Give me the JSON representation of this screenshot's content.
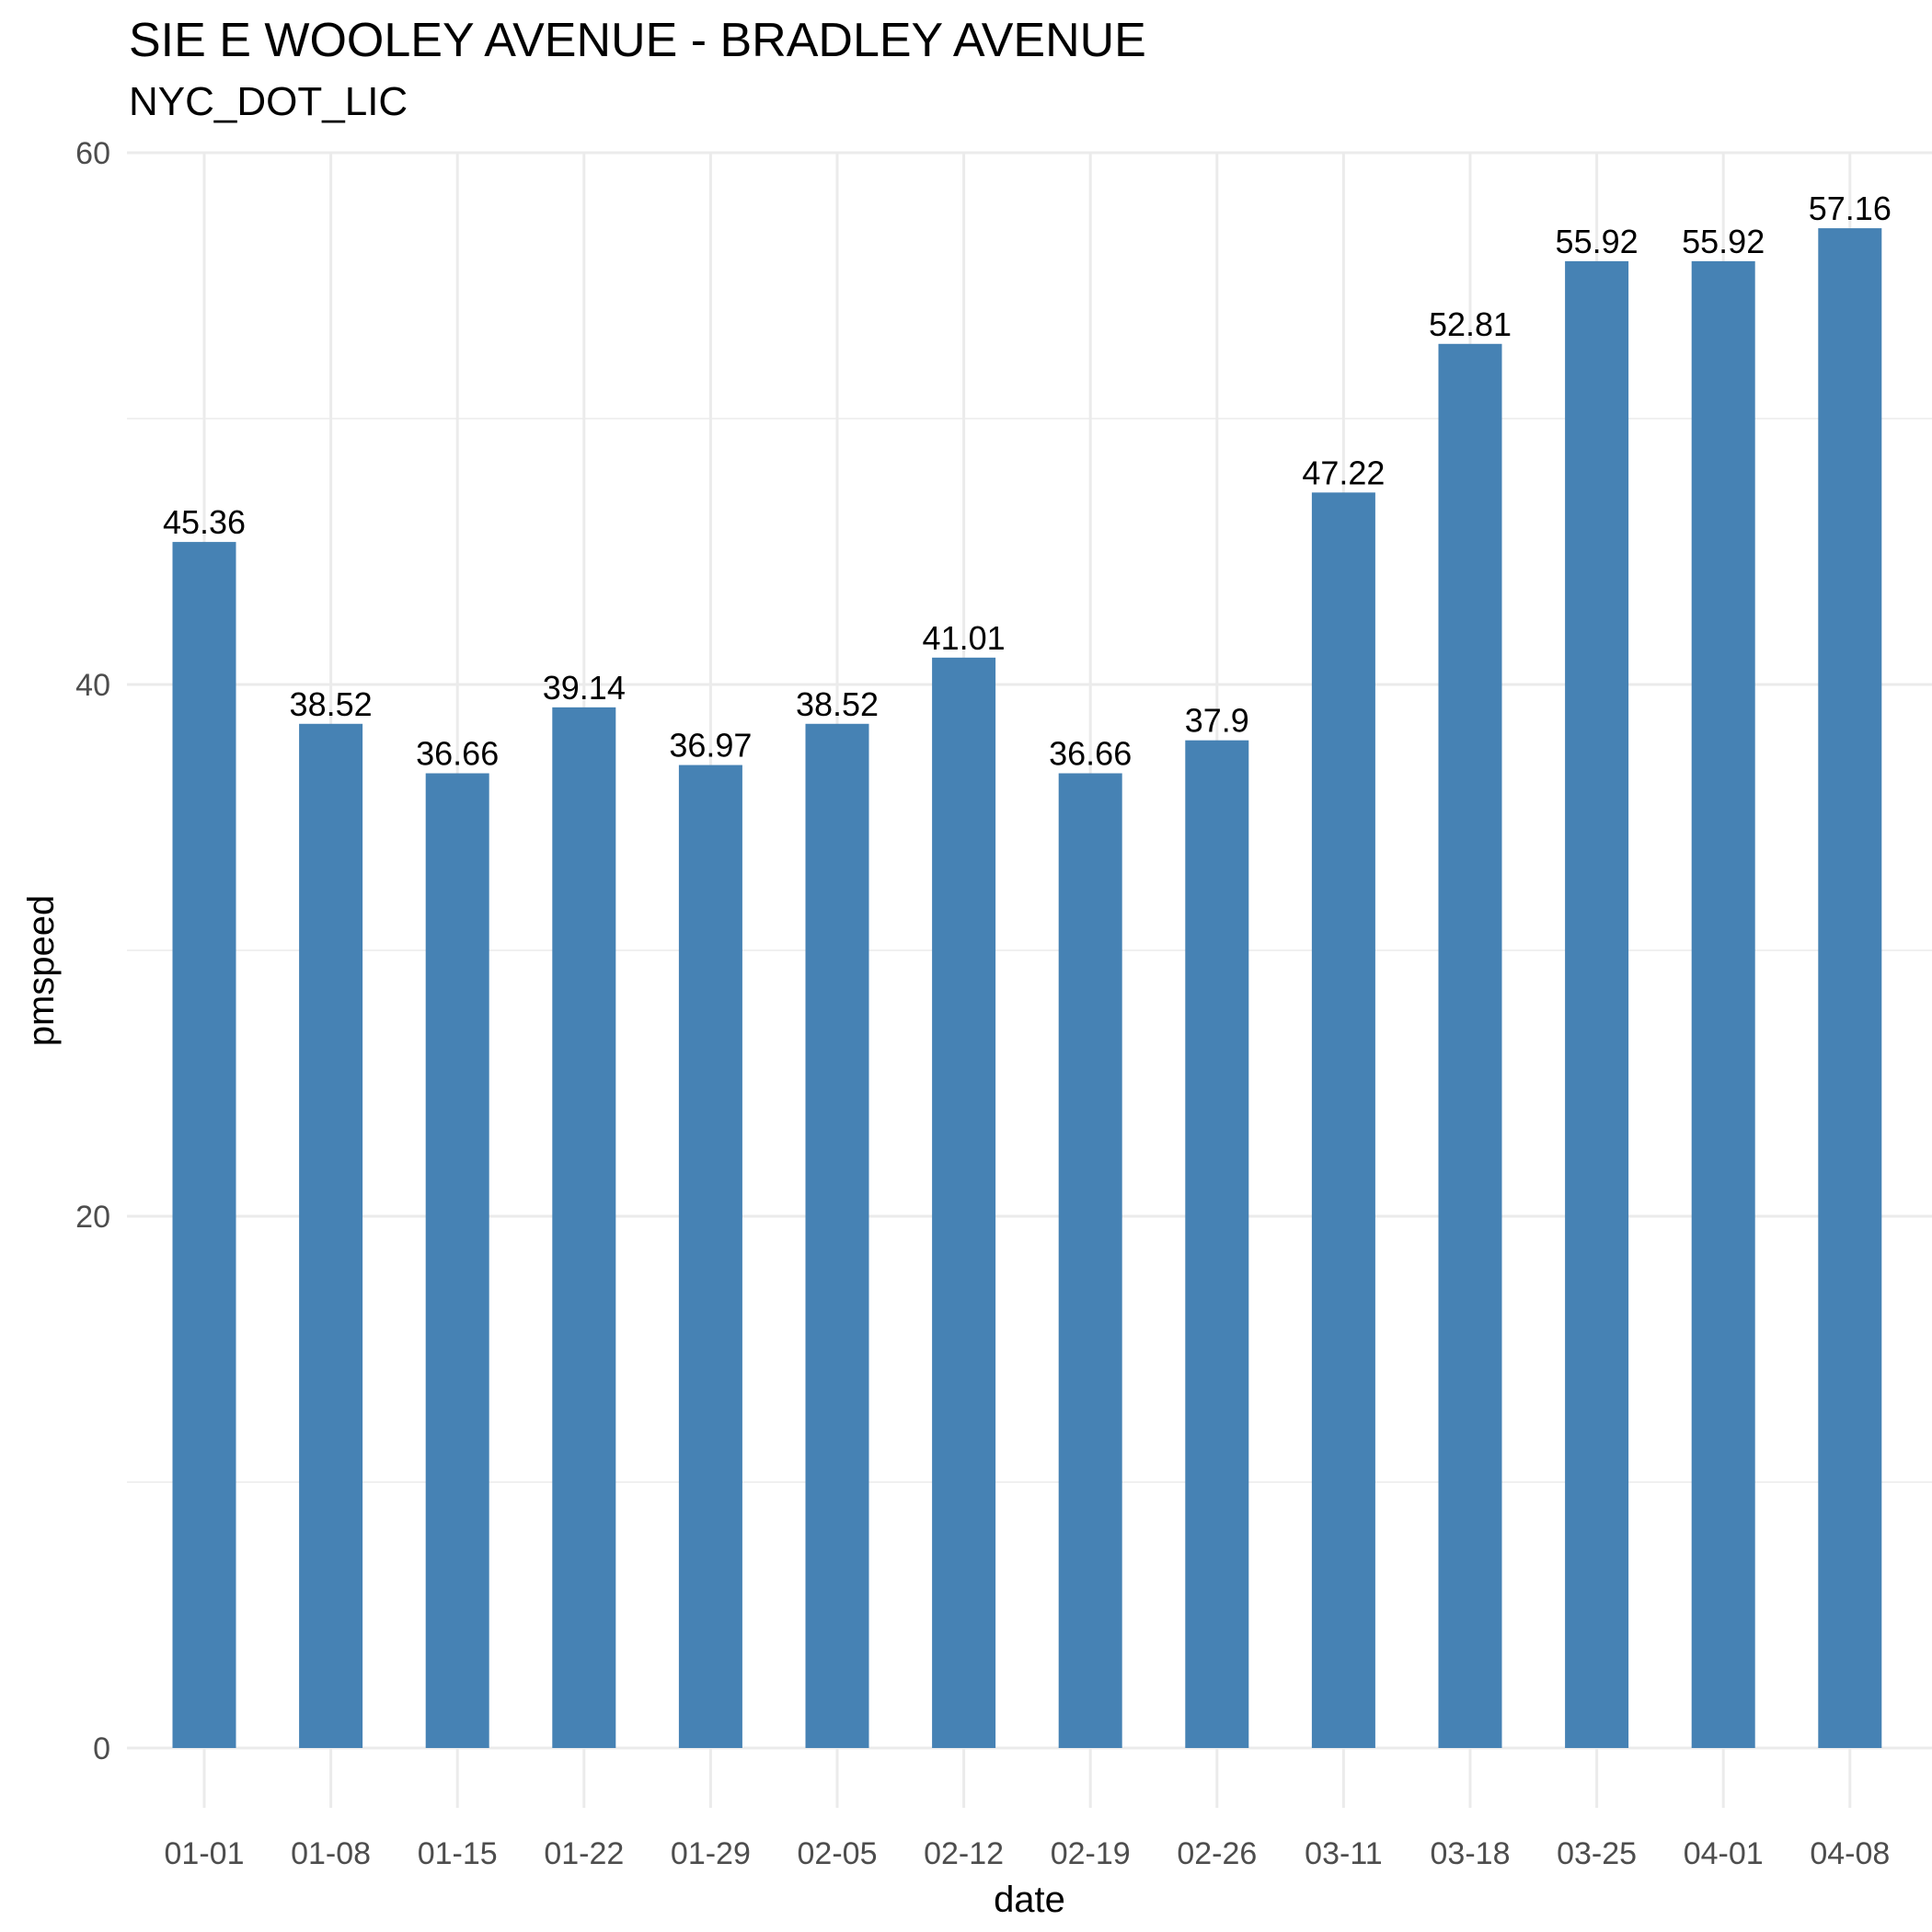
{
  "chart_data": {
    "type": "bar",
    "title": "SIE E WOOLEY AVENUE - BRADLEY AVENUE",
    "subtitle": "NYC_DOT_LIC",
    "xlabel": "date",
    "ylabel": "pmspeed",
    "categories": [
      "01-01",
      "01-08",
      "01-15",
      "01-22",
      "01-29",
      "02-05",
      "02-12",
      "02-19",
      "02-26",
      "03-11",
      "03-18",
      "03-25",
      "04-01",
      "04-08"
    ],
    "values": [
      45.36,
      38.52,
      36.66,
      39.14,
      36.97,
      38.52,
      41.01,
      36.66,
      37.9,
      47.22,
      52.81,
      55.92,
      55.92,
      57.16
    ],
    "value_labels": [
      "45.36",
      "38.52",
      "36.66",
      "39.14",
      "36.97",
      "38.52",
      "41.01",
      "36.66",
      "37.9",
      "47.22",
      "52.81",
      "55.92",
      "55.92",
      "57.16"
    ],
    "ylim": [
      0,
      60
    ],
    "yticks": [
      0,
      20,
      40,
      60
    ],
    "grid": true,
    "legend": "none",
    "bar_color": "#4682B4"
  }
}
